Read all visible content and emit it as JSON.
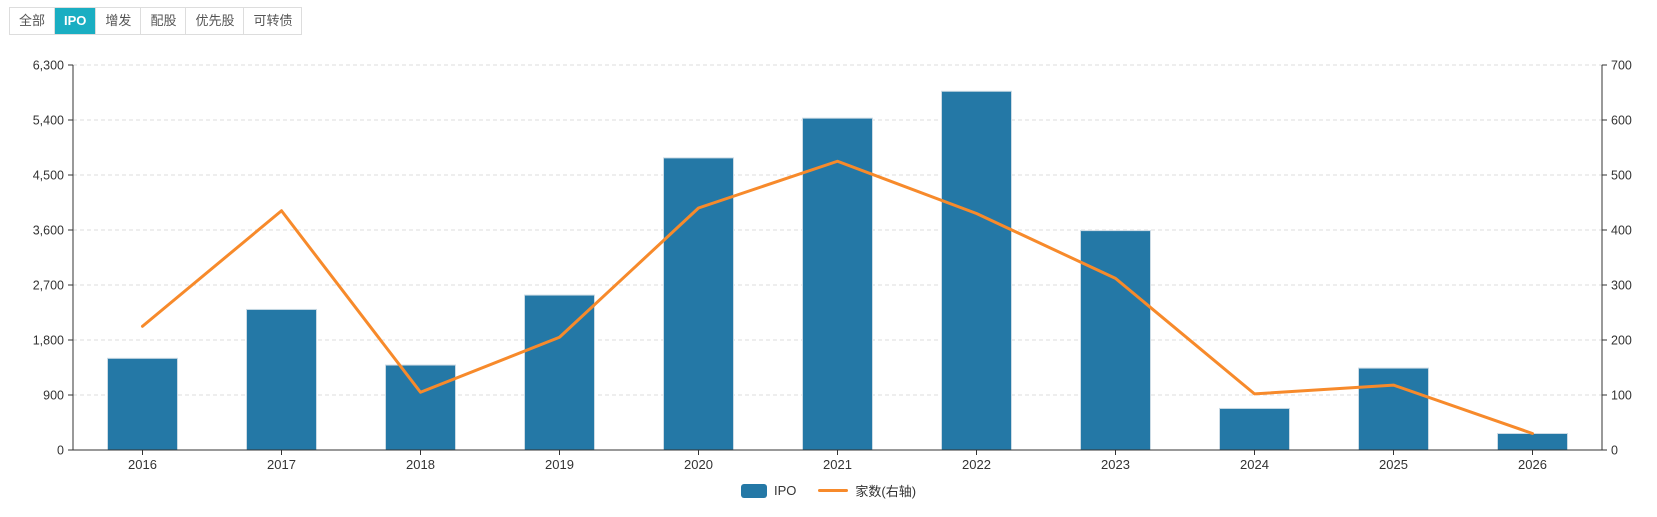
{
  "tabs": [
    {
      "label": "全部",
      "active": false
    },
    {
      "label": "IPO",
      "active": true
    },
    {
      "label": "增发",
      "active": false
    },
    {
      "label": "配股",
      "active": false
    },
    {
      "label": "优先股",
      "active": false
    },
    {
      "label": "可转债",
      "active": false
    }
  ],
  "legend": {
    "bar_label": "IPO",
    "line_label": "家数(右轴)"
  },
  "colors": {
    "bar": "#2478A6",
    "bar_border": "#CCDBE5",
    "line": "#F78A2B",
    "tab_active_bg": "#1AAEC2",
    "axis": "#333333",
    "grid": "#DDDDDD",
    "tick_text": "#333333"
  },
  "chart_data": {
    "type": "combo",
    "title": "",
    "categories": [
      "2016",
      "2017",
      "2018",
      "2019",
      "2020",
      "2021",
      "2022",
      "2023",
      "2024",
      "2025",
      "2026"
    ],
    "series": [
      {
        "name": "IPO",
        "type": "bar",
        "axis": "left",
        "values": [
          1500,
          2300,
          1390,
          2535,
          4780,
          5430,
          5870,
          3590,
          680,
          1340,
          270
        ]
      },
      {
        "name": "家数(右轴)",
        "type": "line",
        "axis": "right",
        "values": [
          225,
          435,
          105,
          205,
          440,
          525,
          430,
          312,
          102,
          118,
          30
        ]
      }
    ],
    "left_axis": {
      "min": 0,
      "max": 6300,
      "step": 900,
      "tick_labels": [
        "0",
        "900",
        "1,800",
        "2,700",
        "3,600",
        "4,500",
        "5,400",
        "6,300"
      ]
    },
    "right_axis": {
      "min": 0,
      "max": 700,
      "step": 100,
      "tick_labels": [
        "0",
        "100",
        "200",
        "300",
        "400",
        "500",
        "600",
        "700"
      ]
    },
    "grid": "horizontal dashed",
    "legend_position": "bottom center"
  }
}
